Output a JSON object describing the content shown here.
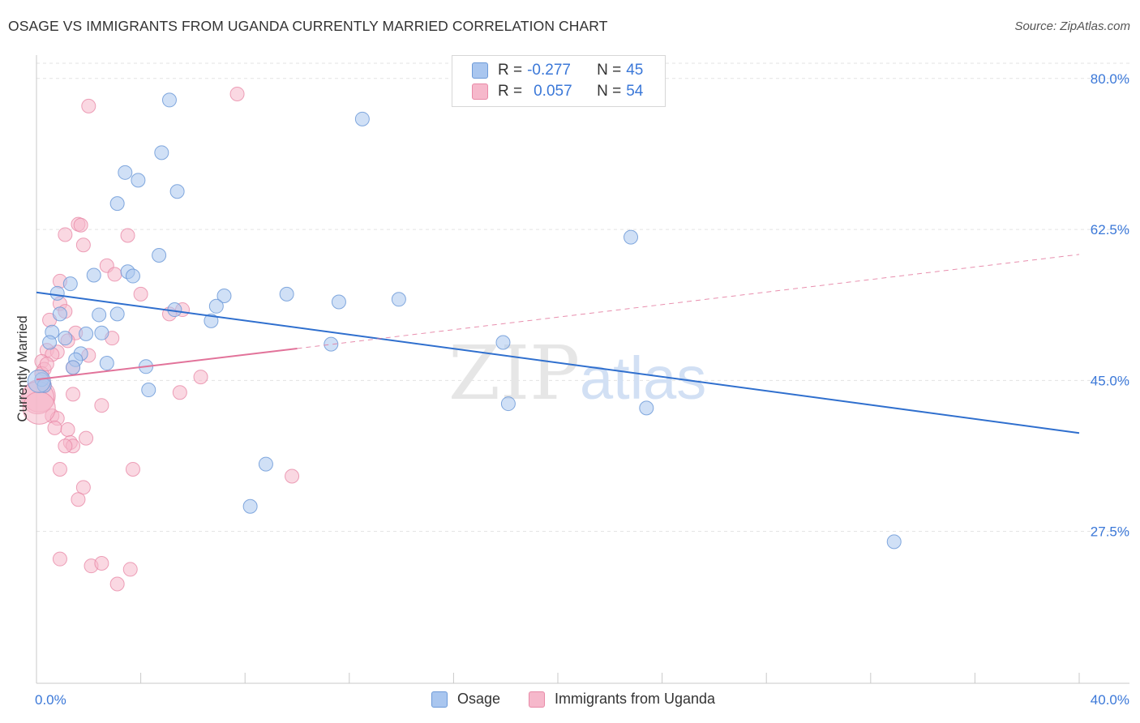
{
  "title": "OSAGE VS IMMIGRANTS FROM UGANDA CURRENTLY MARRIED CORRELATION CHART",
  "source": "Source: ZipAtlas.com",
  "watermark": {
    "zip": "ZIP",
    "atlas": "atlas"
  },
  "legend_top": {
    "rows": [
      {
        "r_label": "R =",
        "r_value": "-0.277",
        "n_label": "N =",
        "n_value": "45",
        "color": "#a9c6ef"
      },
      {
        "r_label": "R =",
        "r_value": "0.057",
        "n_label": "N =",
        "n_value": "54",
        "color": "#f6b8cb"
      }
    ]
  },
  "legend_bottom": {
    "series1": "Osage",
    "series2": "Immigrants from Uganda"
  },
  "colors": {
    "osage_fill": "#a9c6ef",
    "osage_stroke": "#6d9ad8",
    "osage_line": "#2f6fce",
    "uganda_fill": "#f6b8cb",
    "uganda_stroke": "#e88aa7",
    "uganda_line": "#e2739a",
    "grid": "#e3e3e3",
    "axis_text": "#3b78d8"
  },
  "chart_data": {
    "type": "scatter",
    "title": "OSAGE VS IMMIGRANTS FROM UGANDA CURRENTLY MARRIED CORRELATION CHART",
    "xlabel": "",
    "ylabel": "Currently Married",
    "xlim": [
      0,
      40
    ],
    "ylim": [
      10,
      83
    ],
    "x_tick_labels": [
      "0.0%",
      "40.0%"
    ],
    "y_ticks": [
      {
        "value": 80.0,
        "label": "80.0%"
      },
      {
        "value": 62.5,
        "label": "62.5%"
      },
      {
        "value": 45.0,
        "label": "45.0%"
      },
      {
        "value": 27.5,
        "label": "27.5%"
      }
    ],
    "series": [
      {
        "name": "Osage",
        "r": -0.277,
        "n": 45,
        "trend": {
          "x": [
            0,
            40
          ],
          "y": [
            55.2,
            38.9
          ]
        },
        "points": [
          {
            "x": 5.1,
            "y": 77.5
          },
          {
            "x": 12.5,
            "y": 75.3
          },
          {
            "x": 4.8,
            "y": 71.4
          },
          {
            "x": 3.4,
            "y": 69.1
          },
          {
            "x": 3.9,
            "y": 68.2
          },
          {
            "x": 5.4,
            "y": 66.9
          },
          {
            "x": 3.1,
            "y": 65.5
          },
          {
            "x": 22.8,
            "y": 61.6
          },
          {
            "x": 4.7,
            "y": 59.5
          },
          {
            "x": 3.5,
            "y": 57.6
          },
          {
            "x": 2.2,
            "y": 57.2
          },
          {
            "x": 3.7,
            "y": 57.1
          },
          {
            "x": 1.3,
            "y": 56.2
          },
          {
            "x": 0.8,
            "y": 55.1
          },
          {
            "x": 7.2,
            "y": 54.8
          },
          {
            "x": 9.6,
            "y": 55.0
          },
          {
            "x": 11.6,
            "y": 54.1
          },
          {
            "x": 13.9,
            "y": 54.4
          },
          {
            "x": 6.9,
            "y": 53.6
          },
          {
            "x": 5.3,
            "y": 53.2
          },
          {
            "x": 0.9,
            "y": 52.7
          },
          {
            "x": 2.4,
            "y": 52.6
          },
          {
            "x": 3.1,
            "y": 52.7
          },
          {
            "x": 6.7,
            "y": 51.9
          },
          {
            "x": 1.9,
            "y": 50.4
          },
          {
            "x": 2.5,
            "y": 50.5
          },
          {
            "x": 0.6,
            "y": 50.6
          },
          {
            "x": 1.1,
            "y": 49.9
          },
          {
            "x": 0.5,
            "y": 49.4
          },
          {
            "x": 11.3,
            "y": 49.2
          },
          {
            "x": 17.9,
            "y": 49.4
          },
          {
            "x": 1.7,
            "y": 48.1
          },
          {
            "x": 1.5,
            "y": 47.4
          },
          {
            "x": 2.7,
            "y": 47.0
          },
          {
            "x": 1.4,
            "y": 46.5
          },
          {
            "x": 4.2,
            "y": 46.6
          },
          {
            "x": 0.2,
            "y": 45.1
          },
          {
            "x": 0.3,
            "y": 44.4
          },
          {
            "x": 4.3,
            "y": 43.9
          },
          {
            "x": 18.1,
            "y": 42.3
          },
          {
            "x": 23.4,
            "y": 41.8
          },
          {
            "x": 8.8,
            "y": 35.3
          },
          {
            "x": 8.2,
            "y": 30.4
          },
          {
            "x": 32.9,
            "y": 26.3
          },
          {
            "x": 0.1,
            "y": 44.9
          }
        ]
      },
      {
        "name": "Immigrants from Uganda",
        "r": 0.057,
        "n": 54,
        "trend": {
          "x": [
            0,
            10
          ],
          "y": [
            45.1,
            48.7
          ]
        },
        "trend_extended": {
          "x": [
            10,
            40
          ],
          "y": [
            48.7,
            59.6
          ]
        },
        "points": [
          {
            "x": 7.7,
            "y": 78.2
          },
          {
            "x": 2.0,
            "y": 76.8
          },
          {
            "x": 1.6,
            "y": 63.1
          },
          {
            "x": 1.7,
            "y": 63.0
          },
          {
            "x": 1.1,
            "y": 61.9
          },
          {
            "x": 3.5,
            "y": 61.8
          },
          {
            "x": 1.8,
            "y": 60.7
          },
          {
            "x": 2.7,
            "y": 58.3
          },
          {
            "x": 3.0,
            "y": 57.3
          },
          {
            "x": 0.9,
            "y": 56.5
          },
          {
            "x": 4.0,
            "y": 55.0
          },
          {
            "x": 0.9,
            "y": 53.9
          },
          {
            "x": 5.6,
            "y": 53.2
          },
          {
            "x": 5.1,
            "y": 52.7
          },
          {
            "x": 1.1,
            "y": 53.0
          },
          {
            "x": 0.5,
            "y": 52.0
          },
          {
            "x": 1.5,
            "y": 50.5
          },
          {
            "x": 2.9,
            "y": 49.9
          },
          {
            "x": 1.2,
            "y": 49.6
          },
          {
            "x": 0.4,
            "y": 48.5
          },
          {
            "x": 0.8,
            "y": 48.3
          },
          {
            "x": 0.6,
            "y": 48.0
          },
          {
            "x": 0.2,
            "y": 47.2
          },
          {
            "x": 0.3,
            "y": 46.3
          },
          {
            "x": 1.4,
            "y": 46.5
          },
          {
            "x": 0.2,
            "y": 45.8
          },
          {
            "x": 6.3,
            "y": 45.4
          },
          {
            "x": 0.3,
            "y": 44.5
          },
          {
            "x": 0.1,
            "y": 43.2
          },
          {
            "x": 1.4,
            "y": 43.4
          },
          {
            "x": 5.5,
            "y": 43.6
          },
          {
            "x": 2.5,
            "y": 42.1
          },
          {
            "x": 0.6,
            "y": 40.9
          },
          {
            "x": 0.8,
            "y": 40.6
          },
          {
            "x": 0.7,
            "y": 39.5
          },
          {
            "x": 1.2,
            "y": 39.3
          },
          {
            "x": 1.9,
            "y": 38.3
          },
          {
            "x": 1.3,
            "y": 37.8
          },
          {
            "x": 1.4,
            "y": 37.4
          },
          {
            "x": 1.1,
            "y": 37.4
          },
          {
            "x": 0.9,
            "y": 34.7
          },
          {
            "x": 3.7,
            "y": 34.7
          },
          {
            "x": 9.8,
            "y": 33.9
          },
          {
            "x": 1.8,
            "y": 32.6
          },
          {
            "x": 1.6,
            "y": 31.2
          },
          {
            "x": 0.9,
            "y": 24.3
          },
          {
            "x": 2.1,
            "y": 23.5
          },
          {
            "x": 2.5,
            "y": 23.8
          },
          {
            "x": 3.6,
            "y": 23.1
          },
          {
            "x": 3.1,
            "y": 21.4
          },
          {
            "x": 0.05,
            "y": 43.0
          },
          {
            "x": 0.1,
            "y": 41.8
          },
          {
            "x": 0.4,
            "y": 46.9
          },
          {
            "x": 2.0,
            "y": 47.9
          }
        ]
      }
    ]
  }
}
